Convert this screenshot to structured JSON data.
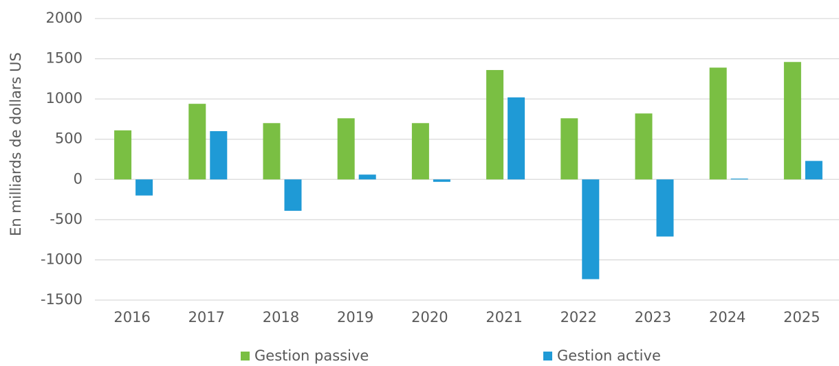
{
  "chart_data": {
    "type": "bar",
    "y_label": "En milliards de dollars US",
    "categories": [
      "2016",
      "2017",
      "2018",
      "2019",
      "2020",
      "2021",
      "2022",
      "2023",
      "2024",
      "2025"
    ],
    "series": [
      {
        "name": "Gestion passive",
        "color": "#7abf43",
        "values": [
          610,
          940,
          700,
          760,
          700,
          1360,
          760,
          820,
          1390,
          1460
        ]
      },
      {
        "name": "Gestion active",
        "color": "#1f9ad6",
        "values": [
          -200,
          600,
          -390,
          60,
          -30,
          1020,
          -1240,
          -710,
          10,
          230
        ]
      }
    ],
    "ylim": [
      -1500,
      2000
    ],
    "yticks": [
      -1500,
      -1000,
      -500,
      0,
      500,
      1000,
      1500,
      2000
    ],
    "grid": true,
    "legend": "bottom"
  }
}
